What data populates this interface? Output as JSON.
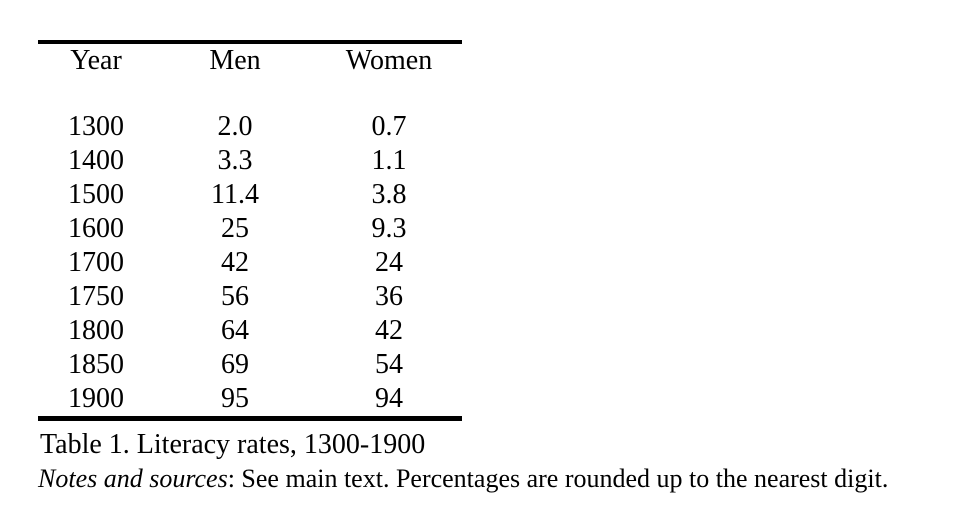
{
  "table": {
    "columns": [
      "Year",
      "Men",
      "Women"
    ],
    "rows": [
      [
        "1300",
        "2.0",
        "0.7"
      ],
      [
        "1400",
        "3.3",
        "1.1"
      ],
      [
        "1500",
        "11.4",
        "3.8"
      ],
      [
        "1600",
        "25",
        "9.3"
      ],
      [
        "1700",
        "42",
        "24"
      ],
      [
        "1750",
        "56",
        "36"
      ],
      [
        "1800",
        "64",
        "42"
      ],
      [
        "1850",
        "69",
        "54"
      ],
      [
        "1900",
        "95",
        "94"
      ]
    ]
  },
  "caption": "Table 1. Literacy rates, 1300-1900",
  "notes": {
    "label": "Notes and sources",
    "text": ": See main text. Percentages are rounded up to the nearest digit."
  },
  "colors": {
    "background": "#ffffff",
    "text": "#000000",
    "rule": "#000000"
  }
}
